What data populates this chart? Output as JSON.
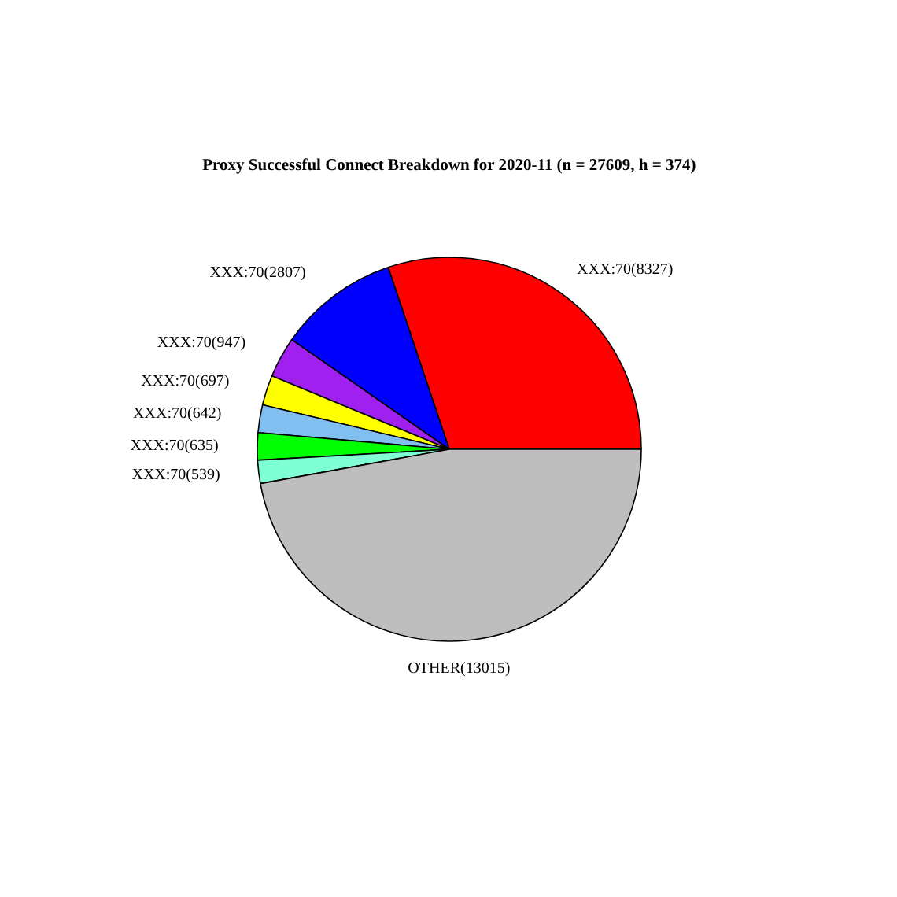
{
  "chart_data": {
    "type": "pie",
    "title": "Proxy Successful Connect Breakdown for 2020-11 (n = 27609, h = 374)",
    "categories": [
      "XXX:70",
      "XXX:70",
      "XXX:70",
      "XXX:70",
      "XXX:70",
      "XXX:70",
      "XXX:70",
      "OTHER"
    ],
    "values": [
      8327,
      2807,
      947,
      697,
      642,
      635,
      539,
      13015
    ],
    "value_labels": [
      "(8327)",
      "(2807)",
      "(947)",
      "(697)",
      "(642)",
      "(635)",
      "(539)",
      "(13015)"
    ],
    "colors": [
      "#ff0000",
      "#0000ff",
      "#a020f0",
      "#ffff00",
      "#80bff0",
      "#00ff00",
      "#7fffd4",
      "#bebebe"
    ]
  }
}
